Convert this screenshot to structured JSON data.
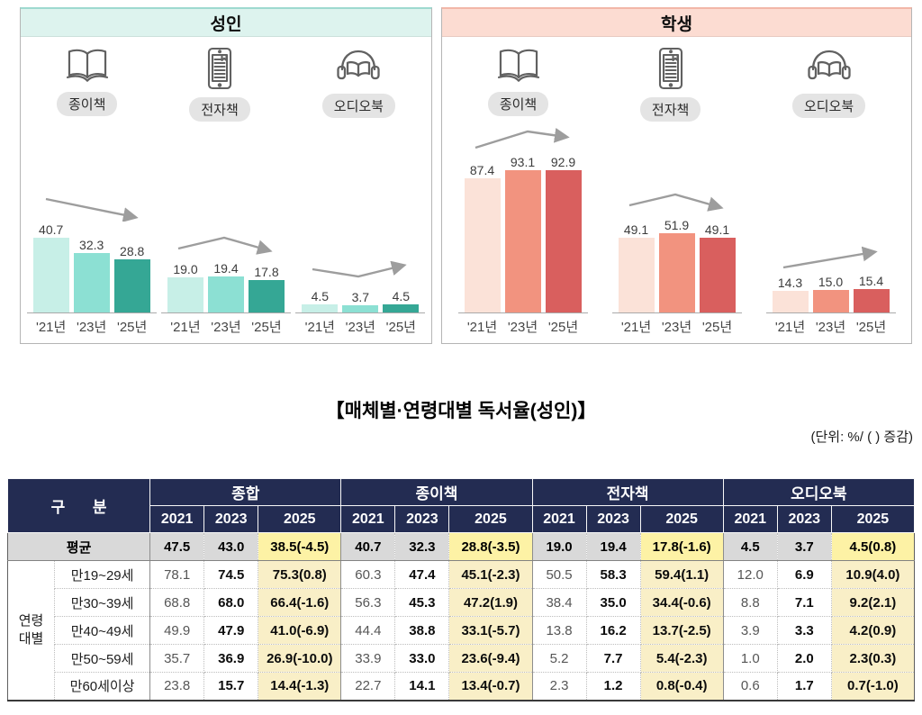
{
  "panels": [
    {
      "title": "성인",
      "header_bg": "#ddf3ee",
      "accent_border": "#9ed9d0",
      "bar_colors": [
        "#c7efe7",
        "#8ce0d3",
        "#35a795"
      ],
      "media": [
        {
          "label": "종이책",
          "icon": "open-book-icon",
          "trend": "down"
        },
        {
          "label": "전자책",
          "icon": "ereader-icon",
          "trend": "peak"
        },
        {
          "label": "오디오북",
          "icon": "audiobook-icon",
          "trend": "dip"
        }
      ]
    },
    {
      "title": "학생",
      "header_bg": "#fcdcd2",
      "accent_border": "#f2b7a8",
      "bar_colors": [
        "#fbe2d8",
        "#f2937f",
        "#d95f5e"
      ],
      "media": [
        {
          "label": "종이책",
          "icon": "open-book-icon",
          "trend": "rise-peak"
        },
        {
          "label": "전자책",
          "icon": "ereader-icon",
          "trend": "peak"
        },
        {
          "label": "오디오북",
          "icon": "audiobook-icon",
          "trend": "rise"
        }
      ]
    }
  ],
  "chart_data": [
    {
      "type": "bar",
      "title": "성인",
      "categories": [
        "'21년",
        "'23년",
        "'25년"
      ],
      "series": [
        {
          "name": "종이책",
          "values": [
            40.7,
            32.3,
            28.8
          ]
        },
        {
          "name": "전자책",
          "values": [
            19.0,
            19.4,
            17.8
          ]
        },
        {
          "name": "오디오북",
          "values": [
            4.5,
            3.7,
            4.5
          ]
        }
      ],
      "ylim": [
        0,
        100
      ],
      "grid": false,
      "data_labels": true
    },
    {
      "type": "bar",
      "title": "학생",
      "categories": [
        "'21년",
        "'23년",
        "'25년"
      ],
      "series": [
        {
          "name": "종이책",
          "values": [
            87.4,
            93.1,
            92.9
          ]
        },
        {
          "name": "전자책",
          "values": [
            49.1,
            51.9,
            49.1
          ]
        },
        {
          "name": "오디오북",
          "values": [
            14.3,
            15.0,
            15.4
          ]
        }
      ],
      "ylim": [
        0,
        100
      ],
      "grid": false,
      "data_labels": true
    },
    {
      "type": "table",
      "title": "【매체별·연령대별 독서율(성인)】",
      "unit_note": "(단위: %/ ( ) 증감)",
      "corner_label": "구 분",
      "group_headers": [
        "종합",
        "종이책",
        "전자책",
        "오디오북"
      ],
      "year_headers": [
        "2021",
        "2023",
        "2025"
      ],
      "average_row": {
        "label": "평균",
        "cells": [
          "47.5",
          "43.0",
          "38.5(-4.5)",
          "40.7",
          "32.3",
          "28.8(-3.5)",
          "19.0",
          "19.4",
          "17.8(-1.6)",
          "4.5",
          "3.7",
          "4.5(0.8)"
        ]
      },
      "age_group_label": "연령대별",
      "age_rows": [
        {
          "label": "만19~29세",
          "cells": [
            "78.1",
            "74.5",
            "75.3(0.8)",
            "60.3",
            "47.4",
            "45.1(-2.3)",
            "50.5",
            "58.3",
            "59.4(1.1)",
            "12.0",
            "6.9",
            "10.9(4.0)"
          ]
        },
        {
          "label": "만30~39세",
          "cells": [
            "68.8",
            "68.0",
            "66.4(-1.6)",
            "56.3",
            "45.3",
            "47.2(1.9)",
            "38.4",
            "35.0",
            "34.4(-0.6)",
            "8.8",
            "7.1",
            "9.2(2.1)"
          ]
        },
        {
          "label": "만40~49세",
          "cells": [
            "49.9",
            "47.9",
            "41.0(-6.9)",
            "44.4",
            "38.8",
            "33.1(-5.7)",
            "13.8",
            "16.2",
            "13.7(-2.5)",
            "3.9",
            "3.3",
            "4.2(0.9)"
          ]
        },
        {
          "label": "만50~59세",
          "cells": [
            "35.7",
            "36.9",
            "26.9(-10.0)",
            "33.9",
            "33.0",
            "23.6(-9.4)",
            "5.2",
            "7.7",
            "5.4(-2.3)",
            "1.0",
            "2.0",
            "2.3(0.3)"
          ]
        },
        {
          "label": "만60세이상",
          "cells": [
            "23.8",
            "15.7",
            "14.4(-1.3)",
            "22.7",
            "14.1",
            "13.4(-0.7)",
            "2.3",
            "1.2",
            "0.8(-0.4)",
            "0.6",
            "1.7",
            "0.7(-1.0)"
          ]
        }
      ]
    }
  ]
}
